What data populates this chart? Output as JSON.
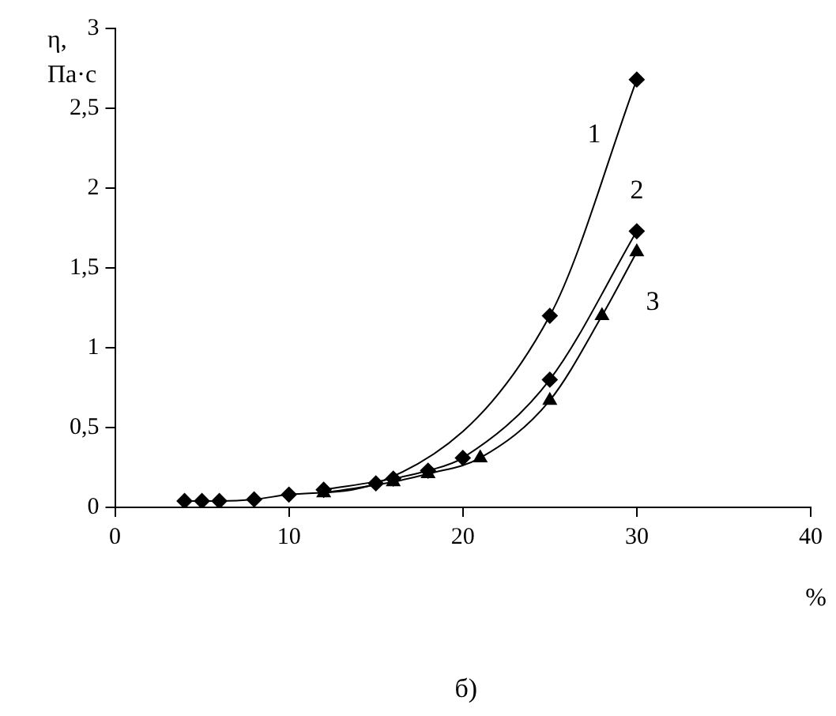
{
  "chart_data": {
    "type": "line",
    "ylabel": "η,\nПа·с",
    "xlabel": "%",
    "xlim": [
      0,
      40
    ],
    "xticks": [
      0,
      10,
      20,
      30,
      40
    ],
    "ylim": [
      0,
      3
    ],
    "yticks": [
      0,
      {
        "value": 0.5,
        "label": "0,5"
      },
      1,
      {
        "value": 1.5,
        "label": "1,5"
      },
      2,
      {
        "value": 2.5,
        "label": "2,5"
      },
      3
    ],
    "grid": false,
    "legend": false,
    "series": [
      {
        "name": "1",
        "color": "#000000",
        "marker": "diamond",
        "x": [
          4,
          5,
          6,
          8,
          10,
          15,
          25,
          30
        ],
        "values": [
          0.04,
          0.04,
          0.04,
          0.05,
          0.08,
          0.15,
          1.2,
          2.68
        ]
      },
      {
        "name": "2",
        "color": "#000000",
        "marker": "diamond",
        "x": [
          12,
          16,
          18,
          20,
          25,
          30
        ],
        "values": [
          0.11,
          0.18,
          0.23,
          0.31,
          0.8,
          1.73
        ]
      },
      {
        "name": "3",
        "color": "#000000",
        "marker": "triangle",
        "x": [
          12,
          16,
          18,
          21,
          25,
          28,
          30
        ],
        "values": [
          0.09,
          0.16,
          0.21,
          0.31,
          0.67,
          1.2,
          1.6
        ]
      }
    ],
    "annotations": [
      "б)"
    ]
  }
}
